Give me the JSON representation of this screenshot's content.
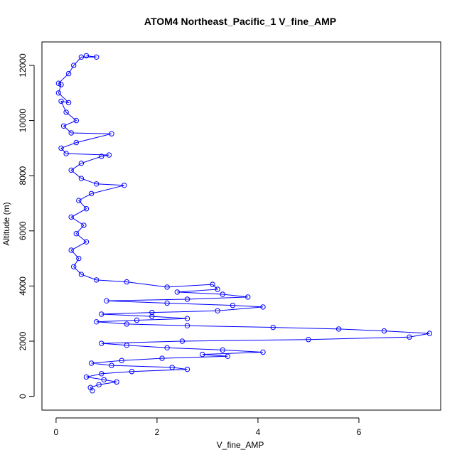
{
  "chart_data": {
    "type": "line",
    "title": "ATOM4 Northeast_Pacific_1 V_fine_AMP",
    "xlabel": "V_fine_AMP",
    "ylabel": "Altitude (m)",
    "xlim": [
      -0.28,
      7.62
    ],
    "ylim": [
      -500,
      12850
    ],
    "x_ticks": [
      "0",
      "2",
      "4",
      "6"
    ],
    "x_tick_values": [
      0,
      2,
      4,
      6
    ],
    "y_ticks": [
      "0",
      "2000",
      "4000",
      "6000",
      "8000",
      "10000",
      "12000"
    ],
    "y_tick_values": [
      0,
      2000,
      4000,
      6000,
      8000,
      10000,
      12000
    ],
    "series_color": "#0000ff",
    "marker": "open-circle",
    "series": [
      {
        "points": [
          [
            0.72,
            200
          ],
          [
            0.68,
            320
          ],
          [
            0.85,
            420
          ],
          [
            1.2,
            520
          ],
          [
            0.95,
            600
          ],
          [
            0.6,
            700
          ],
          [
            0.9,
            820
          ],
          [
            1.5,
            900
          ],
          [
            2.6,
            980
          ],
          [
            2.3,
            1050
          ],
          [
            1.1,
            1120
          ],
          [
            0.7,
            1200
          ],
          [
            1.3,
            1300
          ],
          [
            2.1,
            1380
          ],
          [
            3.4,
            1450
          ],
          [
            2.9,
            1520
          ],
          [
            4.1,
            1600
          ],
          [
            3.3,
            1680
          ],
          [
            2.2,
            1760
          ],
          [
            1.4,
            1850
          ],
          [
            0.9,
            1920
          ],
          [
            2.5,
            2000
          ],
          [
            5.0,
            2060
          ],
          [
            7.0,
            2150
          ],
          [
            7.4,
            2280
          ],
          [
            6.5,
            2370
          ],
          [
            5.6,
            2440
          ],
          [
            4.3,
            2500
          ],
          [
            2.6,
            2560
          ],
          [
            1.4,
            2620
          ],
          [
            0.8,
            2700
          ],
          [
            1.6,
            2760
          ],
          [
            2.6,
            2820
          ],
          [
            1.9,
            2900
          ],
          [
            0.9,
            2980
          ],
          [
            1.9,
            3040
          ],
          [
            3.2,
            3100
          ],
          [
            4.1,
            3240
          ],
          [
            3.5,
            3300
          ],
          [
            2.2,
            3380
          ],
          [
            1.0,
            3460
          ],
          [
            2.6,
            3520
          ],
          [
            3.8,
            3600
          ],
          [
            3.3,
            3700
          ],
          [
            2.4,
            3780
          ],
          [
            3.2,
            3880
          ],
          [
            3.1,
            4060
          ],
          [
            2.2,
            3960
          ],
          [
            1.4,
            4150
          ],
          [
            0.8,
            4220
          ],
          [
            0.5,
            4420
          ],
          [
            0.35,
            4700
          ],
          [
            0.45,
            5000
          ],
          [
            0.3,
            5300
          ],
          [
            0.6,
            5600
          ],
          [
            0.4,
            5900
          ],
          [
            0.55,
            6200
          ],
          [
            0.3,
            6500
          ],
          [
            0.6,
            6800
          ],
          [
            0.45,
            7100
          ],
          [
            0.7,
            7350
          ],
          [
            1.35,
            7650
          ],
          [
            0.8,
            7700
          ],
          [
            0.5,
            7900
          ],
          [
            0.3,
            8200
          ],
          [
            0.5,
            8450
          ],
          [
            0.9,
            8700
          ],
          [
            1.05,
            8750
          ],
          [
            0.2,
            8800
          ],
          [
            0.1,
            9000
          ],
          [
            0.4,
            9200
          ],
          [
            1.1,
            9520
          ],
          [
            0.3,
            9550
          ],
          [
            0.15,
            9800
          ],
          [
            0.4,
            10000
          ],
          [
            0.2,
            10300
          ],
          [
            0.1,
            10700
          ],
          [
            0.25,
            10650
          ],
          [
            0.05,
            11000
          ],
          [
            0.1,
            11300
          ],
          [
            0.05,
            11350
          ],
          [
            0.25,
            11700
          ],
          [
            0.35,
            12000
          ],
          [
            0.5,
            12300
          ],
          [
            0.8,
            12300
          ],
          [
            0.6,
            12350
          ]
        ]
      }
    ]
  }
}
